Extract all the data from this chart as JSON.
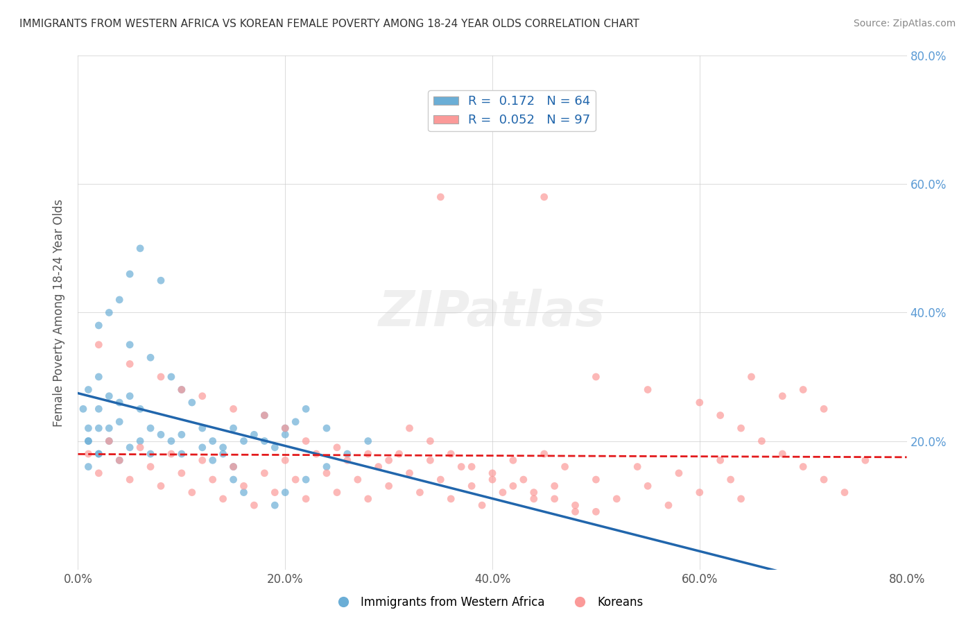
{
  "title": "IMMIGRANTS FROM WESTERN AFRICA VS KOREAN FEMALE POVERTY AMONG 18-24 YEAR OLDS CORRELATION CHART",
  "source": "Source: ZipAtlas.com",
  "xlabel": "",
  "ylabel": "Female Poverty Among 18-24 Year Olds",
  "xlim": [
    0.0,
    0.8
  ],
  "ylim": [
    0.0,
    0.8
  ],
  "xtick_labels": [
    "0.0%",
    "20.0%",
    "40.0%",
    "60.0%",
    "80.0%"
  ],
  "xtick_vals": [
    0.0,
    0.2,
    0.4,
    0.6,
    0.8
  ],
  "ytick_labels": [
    "20.0%",
    "40.0%",
    "60.0%",
    "80.0%"
  ],
  "ytick_vals": [
    0.2,
    0.4,
    0.6,
    0.8
  ],
  "right_ytick_labels": [
    "20.0%",
    "40.0%",
    "60.0%",
    "80.0%"
  ],
  "right_ytick_vals": [
    0.2,
    0.4,
    0.6,
    0.8
  ],
  "legend_r1": "R =  0.172",
  "legend_n1": "N = 64",
  "legend_r2": "R =  0.052",
  "legend_n2": "N = 97",
  "blue_color": "#6baed6",
  "pink_color": "#fb9a99",
  "blue_line_color": "#2166ac",
  "pink_line_color": "#e31a1c",
  "blue_scatter": [
    [
      0.02,
      0.18
    ],
    [
      0.01,
      0.16
    ],
    [
      0.01,
      0.22
    ],
    [
      0.02,
      0.25
    ],
    [
      0.01,
      0.2
    ],
    [
      0.005,
      0.25
    ],
    [
      0.01,
      0.28
    ],
    [
      0.02,
      0.3
    ],
    [
      0.03,
      0.27
    ],
    [
      0.02,
      0.22
    ],
    [
      0.01,
      0.2
    ],
    [
      0.04,
      0.26
    ],
    [
      0.03,
      0.22
    ],
    [
      0.05,
      0.27
    ],
    [
      0.06,
      0.25
    ],
    [
      0.04,
      0.23
    ],
    [
      0.03,
      0.2
    ],
    [
      0.02,
      0.18
    ],
    [
      0.06,
      0.2
    ],
    [
      0.07,
      0.22
    ],
    [
      0.05,
      0.19
    ],
    [
      0.04,
      0.17
    ],
    [
      0.08,
      0.21
    ],
    [
      0.07,
      0.18
    ],
    [
      0.09,
      0.2
    ],
    [
      0.1,
      0.21
    ],
    [
      0.12,
      0.22
    ],
    [
      0.13,
      0.2
    ],
    [
      0.1,
      0.18
    ],
    [
      0.14,
      0.19
    ],
    [
      0.15,
      0.22
    ],
    [
      0.12,
      0.19
    ],
    [
      0.13,
      0.17
    ],
    [
      0.16,
      0.2
    ],
    [
      0.17,
      0.21
    ],
    [
      0.14,
      0.18
    ],
    [
      0.15,
      0.16
    ],
    [
      0.18,
      0.2
    ],
    [
      0.2,
      0.22
    ],
    [
      0.19,
      0.19
    ],
    [
      0.21,
      0.23
    ],
    [
      0.22,
      0.25
    ],
    [
      0.2,
      0.21
    ],
    [
      0.08,
      0.45
    ],
    [
      0.06,
      0.5
    ],
    [
      0.04,
      0.42
    ],
    [
      0.05,
      0.46
    ],
    [
      0.03,
      0.4
    ],
    [
      0.02,
      0.38
    ],
    [
      0.05,
      0.35
    ],
    [
      0.07,
      0.33
    ],
    [
      0.09,
      0.3
    ],
    [
      0.1,
      0.28
    ],
    [
      0.11,
      0.26
    ],
    [
      0.18,
      0.24
    ],
    [
      0.15,
      0.14
    ],
    [
      0.16,
      0.12
    ],
    [
      0.19,
      0.1
    ],
    [
      0.2,
      0.12
    ],
    [
      0.22,
      0.14
    ],
    [
      0.24,
      0.16
    ],
    [
      0.26,
      0.18
    ],
    [
      0.28,
      0.2
    ],
    [
      0.24,
      0.22
    ]
  ],
  "pink_scatter": [
    [
      0.01,
      0.18
    ],
    [
      0.02,
      0.15
    ],
    [
      0.03,
      0.2
    ],
    [
      0.04,
      0.17
    ],
    [
      0.05,
      0.14
    ],
    [
      0.06,
      0.19
    ],
    [
      0.07,
      0.16
    ],
    [
      0.08,
      0.13
    ],
    [
      0.09,
      0.18
    ],
    [
      0.1,
      0.15
    ],
    [
      0.11,
      0.12
    ],
    [
      0.12,
      0.17
    ],
    [
      0.13,
      0.14
    ],
    [
      0.14,
      0.11
    ],
    [
      0.15,
      0.16
    ],
    [
      0.16,
      0.13
    ],
    [
      0.17,
      0.1
    ],
    [
      0.18,
      0.15
    ],
    [
      0.19,
      0.12
    ],
    [
      0.2,
      0.17
    ],
    [
      0.21,
      0.14
    ],
    [
      0.22,
      0.11
    ],
    [
      0.23,
      0.18
    ],
    [
      0.24,
      0.15
    ],
    [
      0.25,
      0.12
    ],
    [
      0.26,
      0.17
    ],
    [
      0.27,
      0.14
    ],
    [
      0.28,
      0.11
    ],
    [
      0.29,
      0.16
    ],
    [
      0.3,
      0.13
    ],
    [
      0.31,
      0.18
    ],
    [
      0.32,
      0.15
    ],
    [
      0.33,
      0.12
    ],
    [
      0.34,
      0.17
    ],
    [
      0.35,
      0.14
    ],
    [
      0.36,
      0.11
    ],
    [
      0.37,
      0.16
    ],
    [
      0.38,
      0.13
    ],
    [
      0.39,
      0.1
    ],
    [
      0.4,
      0.15
    ],
    [
      0.41,
      0.12
    ],
    [
      0.42,
      0.17
    ],
    [
      0.43,
      0.14
    ],
    [
      0.44,
      0.11
    ],
    [
      0.45,
      0.18
    ],
    [
      0.46,
      0.13
    ],
    [
      0.47,
      0.16
    ],
    [
      0.48,
      0.09
    ],
    [
      0.5,
      0.14
    ],
    [
      0.52,
      0.11
    ],
    [
      0.54,
      0.16
    ],
    [
      0.55,
      0.13
    ],
    [
      0.57,
      0.1
    ],
    [
      0.58,
      0.15
    ],
    [
      0.6,
      0.12
    ],
    [
      0.62,
      0.17
    ],
    [
      0.63,
      0.14
    ],
    [
      0.64,
      0.11
    ],
    [
      0.02,
      0.35
    ],
    [
      0.05,
      0.32
    ],
    [
      0.08,
      0.3
    ],
    [
      0.1,
      0.28
    ],
    [
      0.12,
      0.27
    ],
    [
      0.15,
      0.25
    ],
    [
      0.18,
      0.24
    ],
    [
      0.2,
      0.22
    ],
    [
      0.22,
      0.2
    ],
    [
      0.25,
      0.19
    ],
    [
      0.28,
      0.18
    ],
    [
      0.3,
      0.17
    ],
    [
      0.32,
      0.22
    ],
    [
      0.34,
      0.2
    ],
    [
      0.36,
      0.18
    ],
    [
      0.38,
      0.16
    ],
    [
      0.4,
      0.14
    ],
    [
      0.42,
      0.13
    ],
    [
      0.44,
      0.12
    ],
    [
      0.46,
      0.11
    ],
    [
      0.48,
      0.1
    ],
    [
      0.5,
      0.09
    ],
    [
      0.35,
      0.58
    ],
    [
      0.45,
      0.58
    ],
    [
      0.5,
      0.3
    ],
    [
      0.55,
      0.28
    ],
    [
      0.6,
      0.26
    ],
    [
      0.62,
      0.24
    ],
    [
      0.64,
      0.22
    ],
    [
      0.66,
      0.2
    ],
    [
      0.68,
      0.18
    ],
    [
      0.7,
      0.16
    ],
    [
      0.72,
      0.14
    ],
    [
      0.74,
      0.12
    ],
    [
      0.76,
      0.17
    ],
    [
      0.65,
      0.3
    ],
    [
      0.68,
      0.27
    ],
    [
      0.7,
      0.28
    ],
    [
      0.72,
      0.25
    ]
  ],
  "watermark": "ZIPatlas",
  "background_color": "#ffffff",
  "grid_color": "#cccccc"
}
